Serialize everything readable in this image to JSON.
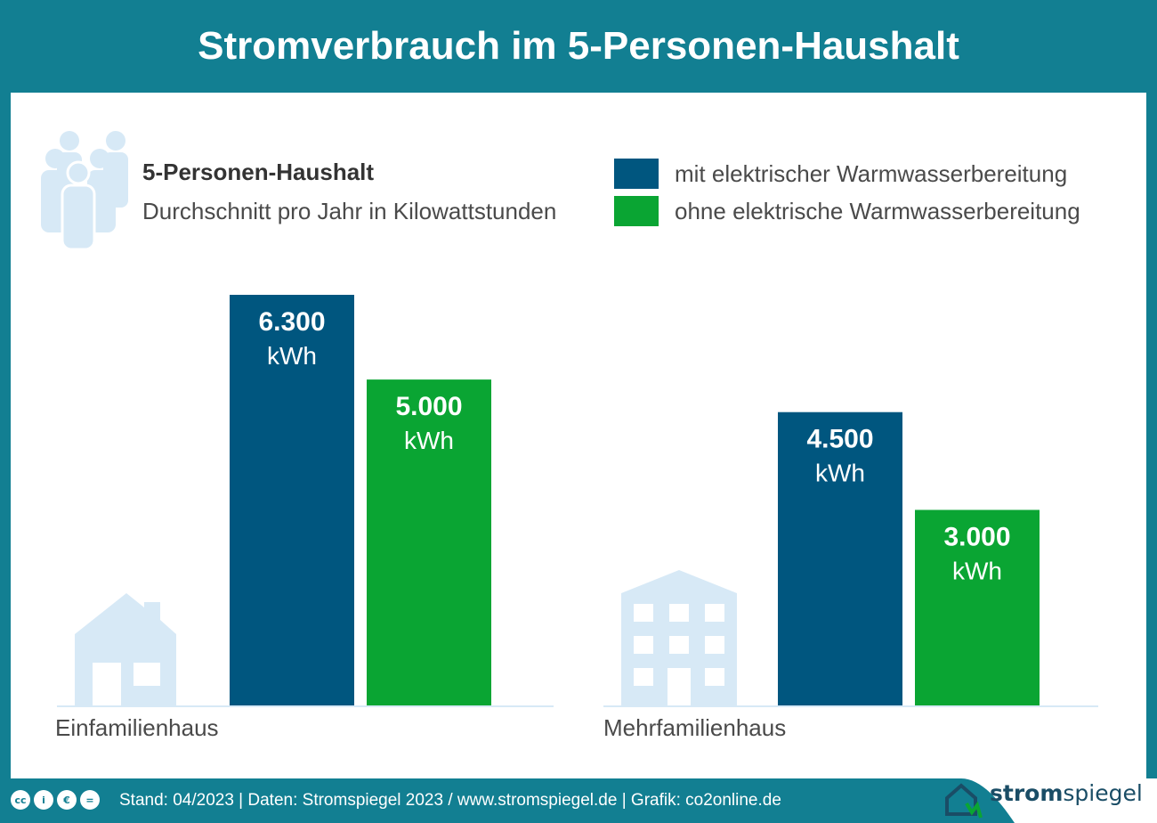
{
  "header": {
    "title": "Stromverbrauch im 5-Personen-Haushalt"
  },
  "subtitle": {
    "title": "5-Personen-Haushalt",
    "description": "Durchschnitt pro Jahr in Kilowattstunden"
  },
  "icons": {
    "people": "people-group-icon",
    "house": "single-family-house-icon",
    "building": "apartment-building-icon",
    "logo": "stromspiegel-house-plug-icon"
  },
  "colors": {
    "background": "#127f92",
    "series_electric": "#00567f",
    "series_non_electric": "#0aa533",
    "icon_light": "#d7e9f6",
    "axis_line": "#d7e9f6"
  },
  "chart_data": {
    "type": "bar",
    "categories": [
      "Einfamilienhaus",
      "Mehrfamilienhaus"
    ],
    "series": [
      {
        "name": "mit elektrischer Warmwasserbereitung",
        "values": [
          6300,
          4500
        ],
        "labels": [
          "6.300",
          "4.500"
        ],
        "color": "#00567f"
      },
      {
        "name": "ohne elektrische Warmwasserbereitung",
        "values": [
          5000,
          3000
        ],
        "labels": [
          "5.000",
          "3.000"
        ],
        "color": "#0aa533"
      }
    ],
    "unit": "kWh",
    "legend_position": "top-right",
    "grid": false
  },
  "footer": {
    "license_icons": [
      "cc-icon",
      "by-icon",
      "nc-icon",
      "nd-icon"
    ],
    "text": "Stand: 04/2023  |  Daten: Stromspiegel 2023 / www.stromspiegel.de  |  Grafik: co2online.de",
    "logo_bold": "strom",
    "logo_light": "spiegel"
  }
}
